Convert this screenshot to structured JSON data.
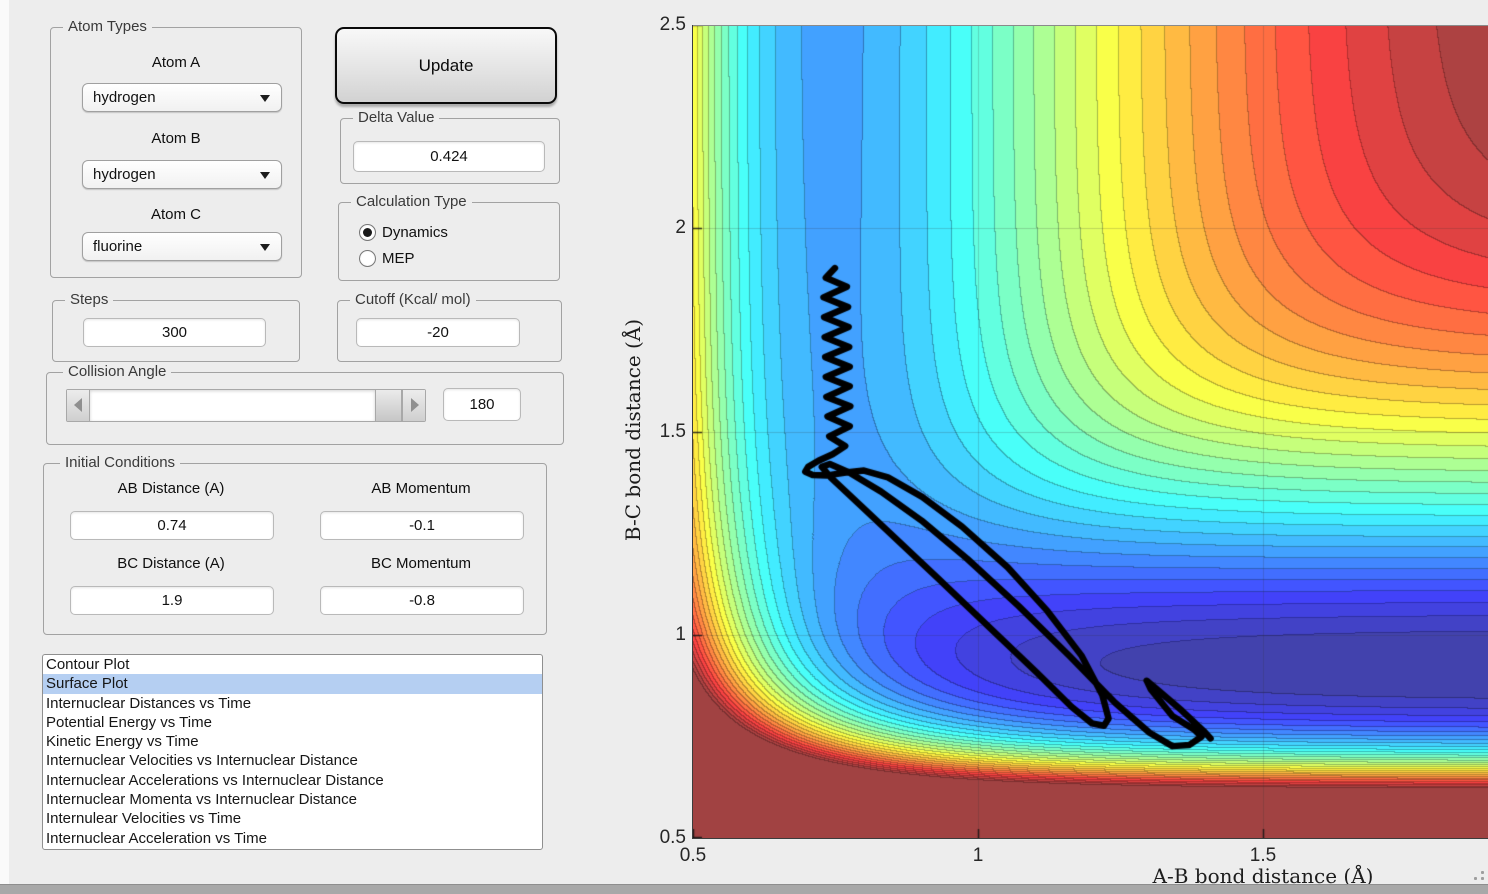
{
  "window": {
    "bg": "#ededed",
    "bottom_bar_color": "#a8a8a8",
    "selection_color": "#b5cff2"
  },
  "panels": {
    "atom_types": {
      "title": "Atom Types",
      "fields": [
        {
          "label": "Atom A",
          "value": "hydrogen"
        },
        {
          "label": "Atom B",
          "value": "hydrogen"
        },
        {
          "label": "Atom C",
          "value": "fluorine"
        }
      ]
    },
    "update_label": "Update",
    "delta": {
      "title": "Delta Value",
      "value": "0.424"
    },
    "calc_type": {
      "title": "Calculation Type",
      "options": [
        {
          "label": "Dynamics",
          "selected": true
        },
        {
          "label": "MEP",
          "selected": false
        }
      ]
    },
    "steps": {
      "title": "Steps",
      "value": "300"
    },
    "cutoff": {
      "title": "Cutoff (Kcal/ mol)",
      "value": "-20"
    },
    "collision": {
      "title": "Collision Angle",
      "value": "180"
    },
    "initial": {
      "title": "Initial Conditions",
      "fields": [
        {
          "label": "AB Distance (A)",
          "value": "0.74"
        },
        {
          "label": "AB Momentum",
          "value": "-0.1"
        },
        {
          "label": "BC Distance (A)",
          "value": "1.9"
        },
        {
          "label": "BC Momentum",
          "value": "-0.8"
        }
      ]
    },
    "plot_list": {
      "selected_index": 1,
      "items": [
        "Contour Plot",
        "Surface Plot",
        "Internuclear Distances vs Time",
        "Potential Energy vs Time",
        "Kinetic Energy vs Time",
        "Internuclear Velocities vs Internuclear Distance",
        "Internuclear Accelerations vs Internuclear Distance",
        "Internuclear Momenta vs Internuclear Distance",
        "Internulear Velocities vs Time",
        "Internuclear Acceleration vs Time"
      ]
    }
  },
  "chart_data": {
    "type": "heatmap",
    "subtype": "filled-contour-potential-energy-surface",
    "title": "",
    "xlabel": "A-B bond distance (Å)",
    "ylabel": "B-C bond distance (Å)",
    "xlim": [
      0.5,
      2.5
    ],
    "ylim": [
      0.5,
      2.5
    ],
    "x_visible_max": 1.894,
    "x_ticks": [
      {
        "v": 0.5,
        "label": "0.5"
      },
      {
        "v": 1,
        "label": "1"
      },
      {
        "v": 1.5,
        "label": "1.5"
      }
    ],
    "y_ticks": [
      {
        "v": 0.5,
        "label": "0.5"
      },
      {
        "v": 1,
        "label": "1"
      },
      {
        "v": 1.5,
        "label": "1.5"
      },
      {
        "v": 2,
        "label": "2"
      },
      {
        "v": 2.5,
        "label": "2.5"
      }
    ],
    "grid": true,
    "colormap": "jet",
    "white_blend": 0.26,
    "levels": {
      "vmin": -140,
      "vmax": -20,
      "n": 30
    },
    "surface_model": {
      "kind": "LEPS",
      "sato": 0.17,
      "pairs": [
        {
          "name": "A-B (H-H)",
          "D": 109.5,
          "a": 2.05,
          "re": 0.742
        },
        {
          "name": "B-C (H-F)",
          "D": 141.2,
          "a": 2.22,
          "re": 0.917
        },
        {
          "name": "A-C (H-F)",
          "D": 141.2,
          "a": 2.22,
          "re": 0.917
        }
      ]
    },
    "trajectory": {
      "color": "#000000",
      "width": 6.5,
      "points": [
        [
          0.749,
          1.902
        ],
        [
          0.733,
          1.878
        ],
        [
          0.77,
          1.856
        ],
        [
          0.729,
          1.83
        ],
        [
          0.772,
          1.806
        ],
        [
          0.73,
          1.781
        ],
        [
          0.773,
          1.757
        ],
        [
          0.731,
          1.732
        ],
        [
          0.774,
          1.708
        ],
        [
          0.732,
          1.683
        ],
        [
          0.775,
          1.659
        ],
        [
          0.733,
          1.634
        ],
        [
          0.775,
          1.611
        ],
        [
          0.734,
          1.585
        ],
        [
          0.776,
          1.562
        ],
        [
          0.736,
          1.537
        ],
        [
          0.775,
          1.513
        ],
        [
          0.739,
          1.488
        ],
        [
          0.767,
          1.464
        ],
        [
          0.745,
          1.444
        ],
        [
          0.72,
          1.428
        ],
        [
          0.702,
          1.413
        ],
        [
          0.697,
          1.401
        ],
        [
          0.71,
          1.393
        ],
        [
          0.736,
          1.392
        ],
        [
          0.768,
          1.399
        ],
        [
          0.8,
          1.404
        ],
        [
          0.842,
          1.387
        ],
        [
          0.902,
          1.339
        ],
        [
          0.972,
          1.266
        ],
        [
          1.052,
          1.166
        ],
        [
          1.122,
          1.058
        ],
        [
          1.182,
          0.948
        ],
        [
          1.218,
          0.852
        ],
        [
          1.229,
          0.794
        ],
        [
          1.221,
          0.776
        ],
        [
          1.2,
          0.782
        ],
        [
          1.164,
          0.823
        ],
        [
          1.104,
          0.906
        ],
        [
          1.02,
          1.018
        ],
        [
          0.929,
          1.14
        ],
        [
          0.847,
          1.248
        ],
        [
          0.784,
          1.331
        ],
        [
          0.741,
          1.388
        ],
        [
          0.726,
          1.413
        ],
        [
          0.74,
          1.42
        ],
        [
          0.774,
          1.399
        ],
        [
          0.83,
          1.352
        ],
        [
          0.901,
          1.281
        ],
        [
          0.981,
          1.187
        ],
        [
          1.071,
          1.071
        ],
        [
          1.161,
          0.947
        ],
        [
          1.241,
          0.832
        ],
        [
          1.301,
          0.759
        ],
        [
          1.341,
          0.726
        ],
        [
          1.371,
          0.729
        ],
        [
          1.392,
          0.749
        ],
        [
          1.379,
          0.767
        ],
        [
          1.341,
          0.8
        ],
        [
          1.303,
          0.866
        ],
        [
          1.296,
          0.887
        ],
        [
          1.318,
          0.861
        ],
        [
          1.358,
          0.813
        ],
        [
          1.396,
          0.763
        ],
        [
          1.408,
          0.745
        ]
      ]
    }
  }
}
